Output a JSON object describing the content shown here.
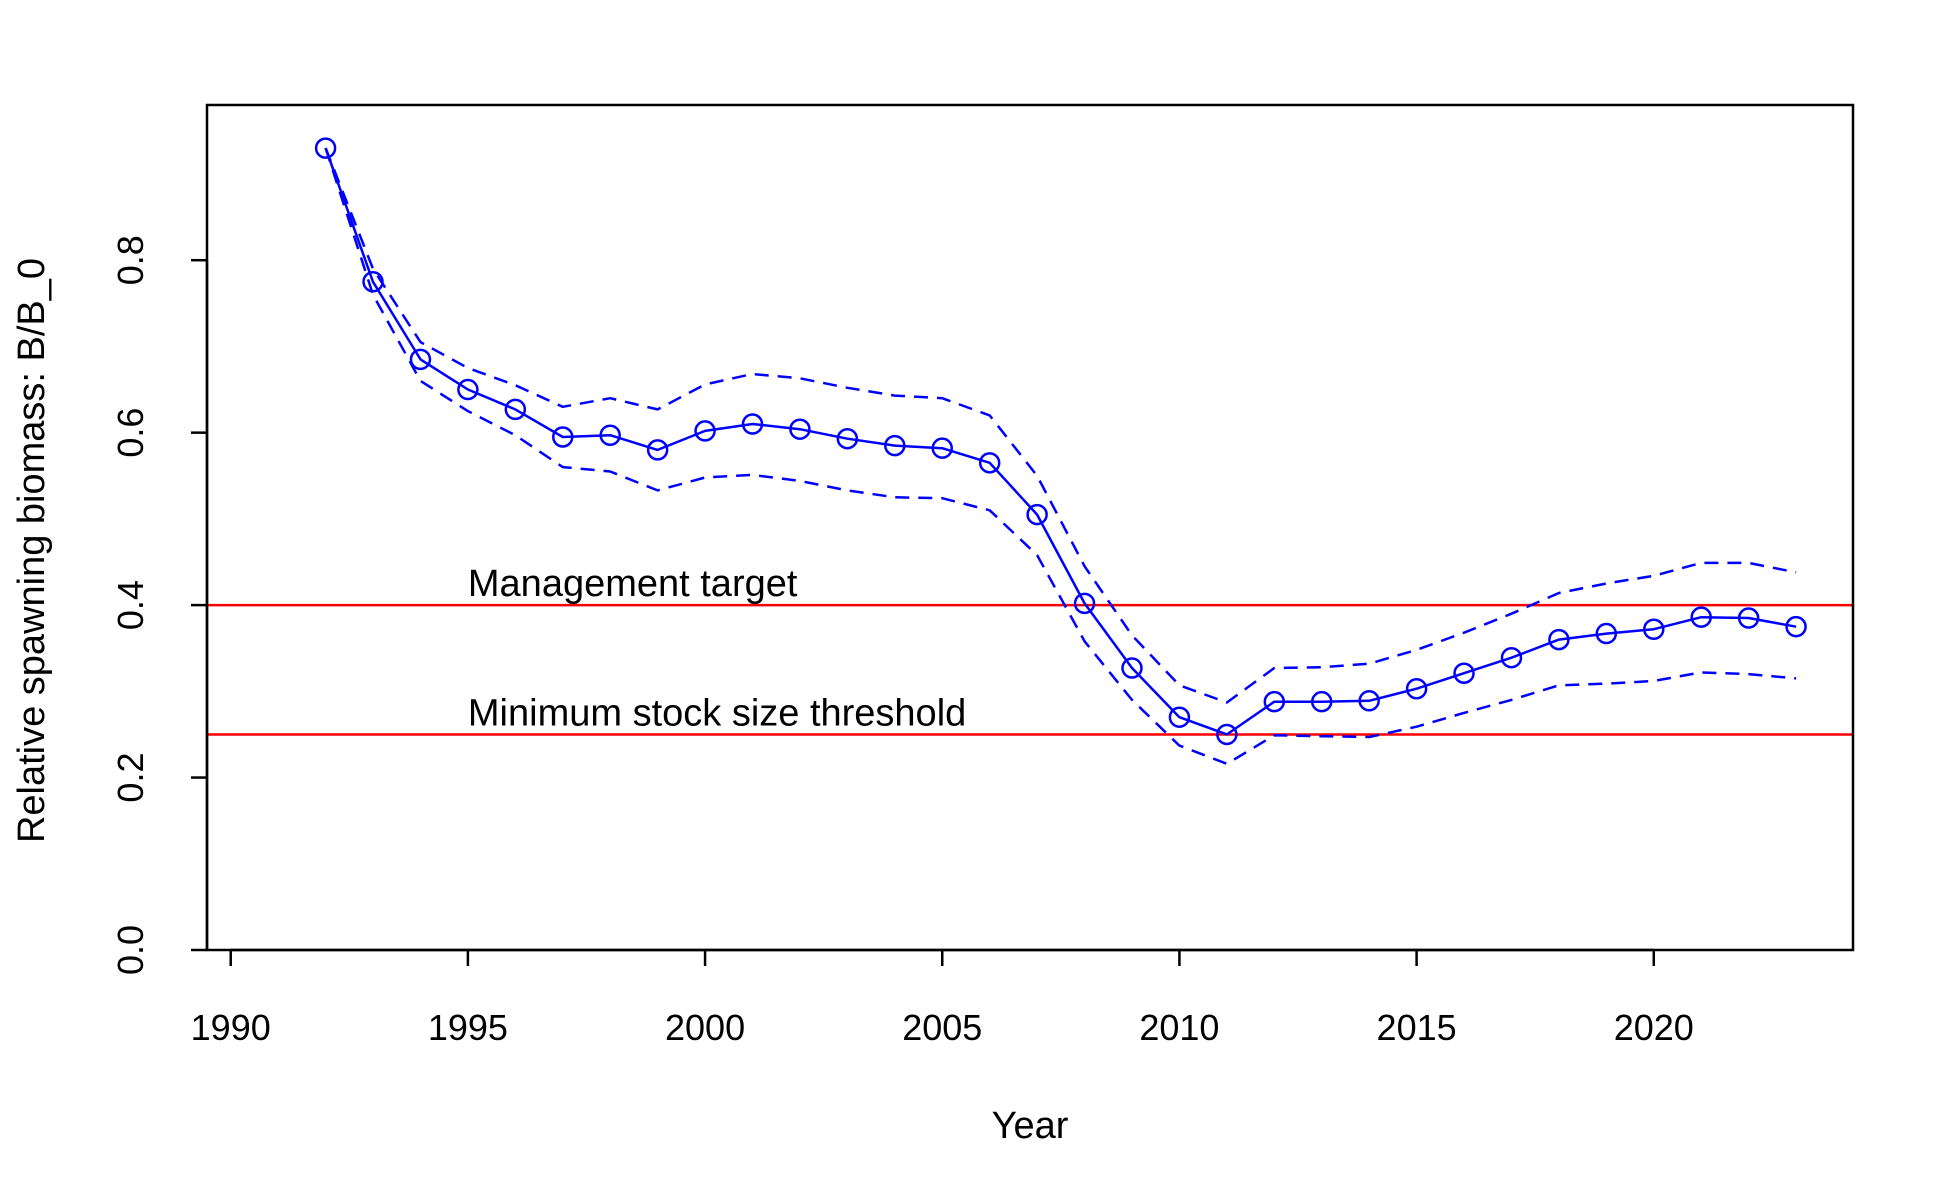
{
  "chart_data": {
    "type": "line",
    "title": "",
    "xlabel": "Year",
    "ylabel": "Relative spawning biomass: B/B_0",
    "xlim": [
      1989.5,
      2024.2
    ],
    "ylim": [
      0,
      0.98
    ],
    "x_ticks": [
      "1990",
      "1995",
      "2000",
      "2005",
      "2010",
      "2015",
      "2020"
    ],
    "y_ticks": [
      "0.0",
      "0.2",
      "0.4",
      "0.6",
      "0.8"
    ],
    "grid": false,
    "colors": {
      "series": "#0000ff",
      "reference": "#ff0000",
      "axis": "#000000"
    },
    "x": [
      1992,
      1993,
      1994,
      1995,
      1996,
      1997,
      1998,
      1999,
      2000,
      2001,
      2002,
      2003,
      2004,
      2005,
      2006,
      2007,
      2008,
      2009,
      2010,
      2011,
      2012,
      2013,
      2014,
      2015,
      2016,
      2017,
      2018,
      2019,
      2020,
      2021,
      2022,
      2023
    ],
    "series": [
      {
        "values": [
          0.93,
          0.775,
          0.685,
          0.65,
          0.627,
          0.595,
          0.597,
          0.58,
          0.602,
          0.61,
          0.604,
          0.593,
          0.585,
          0.582,
          0.565,
          0.505,
          0.402,
          0.327,
          0.27,
          0.25,
          0.288,
          0.288,
          0.289,
          0.303,
          0.321,
          0.339,
          0.36,
          0.367,
          0.372,
          0.386,
          0.385,
          0.375
        ],
        "style": "solid",
        "markers": "open-circle"
      },
      {
        "values": [
          0.93,
          0.79,
          0.705,
          0.675,
          0.655,
          0.63,
          0.64,
          0.627,
          0.656,
          0.668,
          0.663,
          0.652,
          0.643,
          0.64,
          0.62,
          0.55,
          0.445,
          0.365,
          0.307,
          0.287,
          0.327,
          0.328,
          0.332,
          0.348,
          0.368,
          0.39,
          0.414,
          0.425,
          0.434,
          0.449,
          0.449,
          0.438
        ],
        "style": "dashed",
        "role": "upper-interval"
      },
      {
        "values": [
          0.93,
          0.76,
          0.66,
          0.625,
          0.597,
          0.56,
          0.555,
          0.533,
          0.548,
          0.551,
          0.544,
          0.533,
          0.525,
          0.524,
          0.51,
          0.458,
          0.358,
          0.29,
          0.237,
          0.216,
          0.249,
          0.248,
          0.247,
          0.259,
          0.275,
          0.29,
          0.307,
          0.309,
          0.312,
          0.322,
          0.32,
          0.315
        ],
        "style": "dashed",
        "role": "lower-interval"
      }
    ],
    "reference_lines": [
      {
        "y": 0.4,
        "label": "Management target",
        "label_x": 1995
      },
      {
        "y": 0.25,
        "label": "Minimum stock size threshold",
        "label_x": 1995
      }
    ]
  }
}
